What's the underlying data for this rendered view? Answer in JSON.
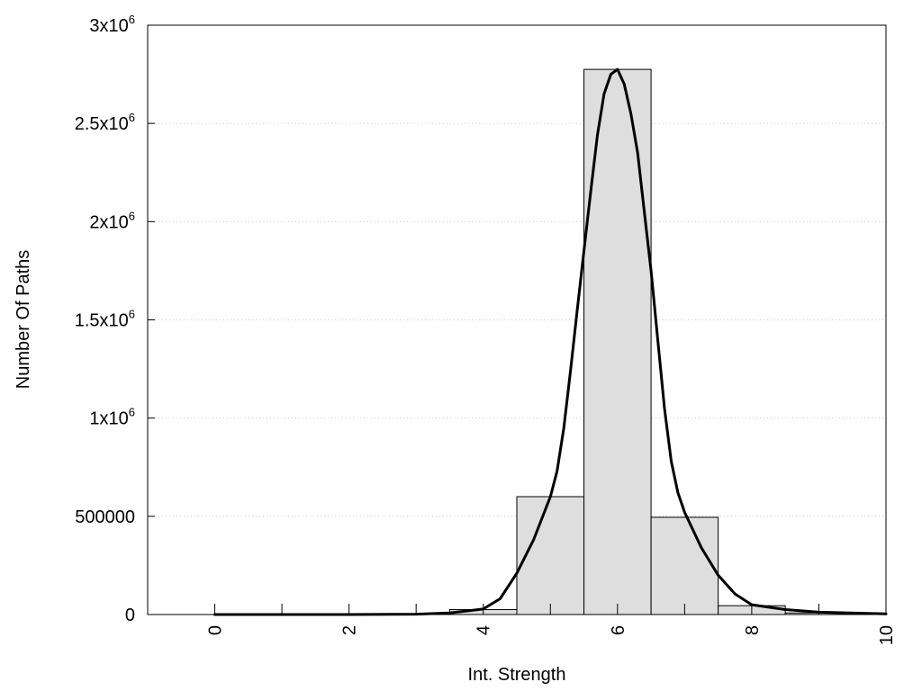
{
  "chart_data": {
    "type": "bar",
    "title": "",
    "xlabel": "Int. Strength",
    "ylabel": "Number Of Paths",
    "xlim": [
      -1,
      10
    ],
    "ylim": [
      0,
      3000000
    ],
    "x_ticks": [
      {
        "value": 0,
        "label": "0"
      },
      {
        "value": 2,
        "label": "2"
      },
      {
        "value": 4,
        "label": "4"
      },
      {
        "value": 6,
        "label": "6"
      },
      {
        "value": 8,
        "label": "8"
      },
      {
        "value": 10,
        "label": "10"
      }
    ],
    "y_ticks": [
      {
        "value": 0,
        "base": "0",
        "exp": ""
      },
      {
        "value": 500000,
        "base": "500000",
        "exp": ""
      },
      {
        "value": 1000000,
        "base": "1x10",
        "exp": "6"
      },
      {
        "value": 1500000,
        "base": "1.5x10",
        "exp": "6"
      },
      {
        "value": 2000000,
        "base": "2x10",
        "exp": "6"
      },
      {
        "value": 2500000,
        "base": "2.5x10",
        "exp": "6"
      },
      {
        "value": 3000000,
        "base": "3x10",
        "exp": "6"
      }
    ],
    "grid": true,
    "bars": {
      "bin_width": 1,
      "fill": "#dedede",
      "stroke": "#000000",
      "centers": [
        0,
        1,
        2,
        3,
        4,
        5,
        6,
        7,
        8,
        9,
        10
      ],
      "values": [
        0,
        0,
        0,
        2000,
        25000,
        600000,
        2775000,
        495000,
        45000,
        8000,
        0
      ]
    },
    "curve": {
      "color": "#000000",
      "x": [
        0,
        1,
        2,
        3,
        3.5,
        4,
        4.25,
        4.5,
        4.75,
        5,
        5.1,
        5.2,
        5.3,
        5.4,
        5.5,
        5.6,
        5.7,
        5.8,
        5.9,
        6,
        6.1,
        6.2,
        6.3,
        6.4,
        6.5,
        6.6,
        6.7,
        6.8,
        6.9,
        7,
        7.25,
        7.5,
        7.75,
        8,
        8.5,
        9,
        10
      ],
      "y": [
        0,
        0,
        0,
        2000,
        8000,
        28000,
        80000,
        210000,
        380000,
        600000,
        730000,
        950000,
        1240000,
        1550000,
        1850000,
        2150000,
        2440000,
        2650000,
        2750000,
        2775000,
        2700000,
        2550000,
        2350000,
        2050000,
        1750000,
        1400000,
        1050000,
        780000,
        620000,
        520000,
        340000,
        200000,
        105000,
        50000,
        25000,
        12000,
        3000
      ]
    }
  }
}
